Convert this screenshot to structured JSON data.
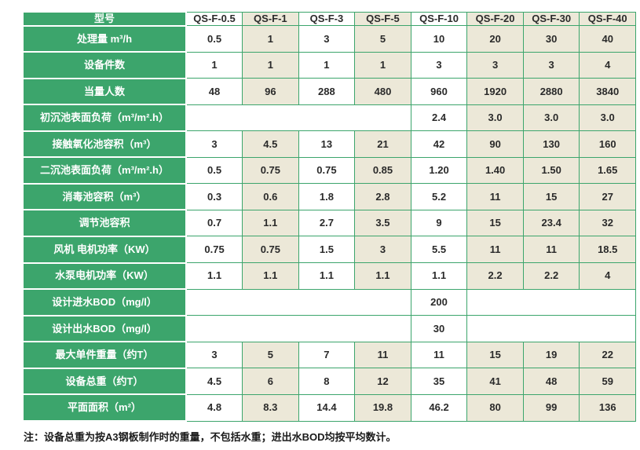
{
  "colors": {
    "header_green": "#3ca56c",
    "grid_green": "#3ca56c",
    "beige": "#ece8d8",
    "cell_white": "#ffffff",
    "data_text": "#2a2a2a"
  },
  "note": "注：设备总重为按A3钢板制作时的重量，不包括水重；进出水BOD均按平均数计。",
  "table": {
    "column_pattern": [
      "white",
      "beige",
      "white",
      "beige",
      "white",
      "beige",
      "beige",
      "beige"
    ],
    "header": {
      "label": "型号",
      "models": [
        "QS-F-0.5",
        "QS-F-1",
        "QS-F-3",
        "QS-F-5",
        "QS-F-10",
        "QS-F-20",
        "QS-F-30",
        "QS-F-40"
      ]
    },
    "rows": [
      {
        "label": "处理量 m³/h",
        "cells": [
          {
            "text": "0.5"
          },
          {
            "text": "1"
          },
          {
            "text": "3"
          },
          {
            "text": "5"
          },
          {
            "text": "10"
          },
          {
            "text": "20"
          },
          {
            "text": "30"
          },
          {
            "text": "40"
          }
        ]
      },
      {
        "label": "设备件数",
        "cells": [
          {
            "text": "1"
          },
          {
            "text": "1"
          },
          {
            "text": "1"
          },
          {
            "text": "1"
          },
          {
            "text": "3"
          },
          {
            "text": "3"
          },
          {
            "text": "3"
          },
          {
            "text": "4"
          }
        ]
      },
      {
        "label": "当量人数",
        "cells": [
          {
            "text": "48"
          },
          {
            "text": "96"
          },
          {
            "text": "288"
          },
          {
            "text": "480"
          },
          {
            "text": "960"
          },
          {
            "text": "1920"
          },
          {
            "text": "2880"
          },
          {
            "text": "3840"
          }
        ]
      },
      {
        "label": "初沉池表面负荷（m³/m².h）",
        "cells": [
          {
            "text": "",
            "span": 4
          },
          {
            "text": "2.4"
          },
          {
            "text": "3.0"
          },
          {
            "text": "3.0"
          },
          {
            "text": "3.0"
          }
        ]
      },
      {
        "label": "接触氧化池容积（m³）",
        "cells": [
          {
            "text": "3"
          },
          {
            "text": "4.5"
          },
          {
            "text": "13"
          },
          {
            "text": "21"
          },
          {
            "text": "42"
          },
          {
            "text": "90"
          },
          {
            "text": "130"
          },
          {
            "text": "160"
          }
        ]
      },
      {
        "label": "二沉池表面负荷（m³/m².h）",
        "cells": [
          {
            "text": "0.5"
          },
          {
            "text": "0.75"
          },
          {
            "text": "0.75"
          },
          {
            "text": "0.85"
          },
          {
            "text": "1.20"
          },
          {
            "text": "1.40"
          },
          {
            "text": "1.50"
          },
          {
            "text": "1.65"
          }
        ]
      },
      {
        "label": "消毒池容积（m³）",
        "cells": [
          {
            "text": "0.3"
          },
          {
            "text": "0.6"
          },
          {
            "text": "1.8"
          },
          {
            "text": "2.8"
          },
          {
            "text": "5.2"
          },
          {
            "text": "11"
          },
          {
            "text": "15"
          },
          {
            "text": "27"
          }
        ]
      },
      {
        "label": "调节池容积",
        "cells": [
          {
            "text": "0.7"
          },
          {
            "text": "1.1"
          },
          {
            "text": "2.7"
          },
          {
            "text": "3.5"
          },
          {
            "text": "9"
          },
          {
            "text": "15"
          },
          {
            "text": "23.4"
          },
          {
            "text": "32"
          }
        ]
      },
      {
        "label": "风机 电机功率（KW）",
        "cells": [
          {
            "text": "0.75"
          },
          {
            "text": "0.75"
          },
          {
            "text": "1.5"
          },
          {
            "text": "3"
          },
          {
            "text": "5.5"
          },
          {
            "text": "11"
          },
          {
            "text": "11"
          },
          {
            "text": "18.5"
          }
        ]
      },
      {
        "label": "水泵电机功率（KW）",
        "cells": [
          {
            "text": "1.1"
          },
          {
            "text": "1.1"
          },
          {
            "text": "1.1"
          },
          {
            "text": "1.1"
          },
          {
            "text": "1.1"
          },
          {
            "text": "2.2"
          },
          {
            "text": "2.2"
          },
          {
            "text": "4"
          }
        ]
      },
      {
        "label": "设计进水BOD（mg/l）",
        "cells": [
          {
            "text": "",
            "span": 4
          },
          {
            "text": "200"
          },
          {
            "text": "",
            "span": 3
          }
        ]
      },
      {
        "label": "设计出水BOD（mg/l）",
        "cells": [
          {
            "text": "",
            "span": 4
          },
          {
            "text": "30"
          },
          {
            "text": "",
            "span": 3
          }
        ]
      },
      {
        "label": "最大单件重量（约T）",
        "cells": [
          {
            "text": "3"
          },
          {
            "text": "5"
          },
          {
            "text": "7"
          },
          {
            "text": "11"
          },
          {
            "text": "11"
          },
          {
            "text": "15"
          },
          {
            "text": "19"
          },
          {
            "text": "22"
          }
        ]
      },
      {
        "label": "设备总重（约T）",
        "cells": [
          {
            "text": "4.5"
          },
          {
            "text": "6"
          },
          {
            "text": "8"
          },
          {
            "text": "12"
          },
          {
            "text": "35"
          },
          {
            "text": "41"
          },
          {
            "text": "48"
          },
          {
            "text": "59"
          }
        ]
      },
      {
        "label": "平面面积（m²）",
        "cells": [
          {
            "text": "4.8"
          },
          {
            "text": "8.3"
          },
          {
            "text": "14.4"
          },
          {
            "text": "19.8"
          },
          {
            "text": "46.2"
          },
          {
            "text": "80"
          },
          {
            "text": "99"
          },
          {
            "text": "136"
          }
        ]
      }
    ]
  }
}
